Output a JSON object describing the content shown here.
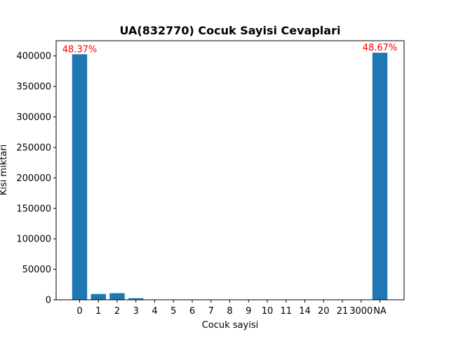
{
  "chart_data": {
    "type": "bar",
    "title": "UA(832770) Cocuk Sayisi Cevaplari",
    "xlabel": "Cocuk sayisi",
    "ylabel": "Kisi miktari",
    "categories": [
      "0",
      "1",
      "2",
      "3",
      "4",
      "5",
      "6",
      "7",
      "8",
      "9",
      "10",
      "11",
      "14",
      "20",
      "21",
      "3000",
      "NA"
    ],
    "values": [
      402800,
      9500,
      10800,
      2600,
      500,
      150,
      60,
      30,
      15,
      8,
      6,
      3,
      2,
      1,
      1,
      1,
      405300
    ],
    "ylim": [
      0,
      425000
    ],
    "yticks": [
      0,
      50000,
      100000,
      150000,
      200000,
      250000,
      300000,
      350000,
      400000
    ],
    "bar_color": "#1f77b4",
    "grid": false,
    "annotations": [
      {
        "category": "0",
        "text": "48.37%",
        "color": "#ff0000"
      },
      {
        "category": "NA",
        "text": "48.67%",
        "color": "#ff0000"
      }
    ]
  }
}
